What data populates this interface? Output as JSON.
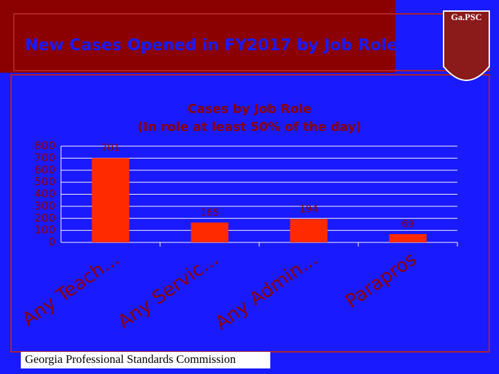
{
  "header": {
    "title": "New Cases Opened in FY2017 by Job Role"
  },
  "logo": {
    "text": "Ga.PSC"
  },
  "footer": {
    "text": "Georgia Professional Standards Commission"
  },
  "chart_data": {
    "type": "bar",
    "title": [
      "Cases by Job Role",
      "(In role at least 50% of the day)"
    ],
    "categories": [
      "Any Teach...",
      "Any Servic...",
      "Any Admin...",
      "Parapros"
    ],
    "values": [
      701,
      165,
      194,
      69
    ],
    "color": "#ff2a00",
    "ylim": [
      0,
      800
    ],
    "yticks": [
      0,
      100,
      200,
      300,
      400,
      500,
      600,
      700,
      800
    ],
    "grid": true
  }
}
